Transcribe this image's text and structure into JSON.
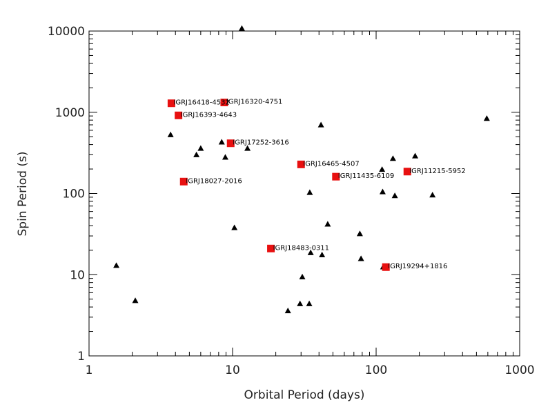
{
  "chart_data": {
    "type": "scatter",
    "xlabel": "Orbital Period (days)",
    "ylabel": "Spin Period (s)",
    "x_scale": "log",
    "y_scale": "log",
    "xlim": [
      1,
      1000
    ],
    "ylim": [
      1,
      10000
    ],
    "x_ticks": [
      "1",
      "10",
      "100",
      "1000"
    ],
    "y_ticks": [
      "1",
      "10",
      "100",
      "1000",
      "10000"
    ],
    "grid": false,
    "colors": {
      "highlight": "#e81010",
      "known": "#000000",
      "axis": "#000000"
    },
    "series": [
      {
        "marker": "triangle",
        "color": "#000000",
        "points": [
          {
            "x": 1.55,
            "y": 13
          },
          {
            "x": 2.1,
            "y": 4.8
          },
          {
            "x": 3.7,
            "y": 530
          },
          {
            "x": 5.6,
            "y": 300
          },
          {
            "x": 6.0,
            "y": 360
          },
          {
            "x": 8.4,
            "y": 430
          },
          {
            "x": 8.9,
            "y": 280
          },
          {
            "x": 10.3,
            "y": 38
          },
          {
            "x": 11.6,
            "y": 10800
          },
          {
            "x": 12.7,
            "y": 360
          },
          {
            "x": 24.3,
            "y": 3.6
          },
          {
            "x": 29.5,
            "y": 4.4
          },
          {
            "x": 30.6,
            "y": 9.4
          },
          {
            "x": 34.2,
            "y": 4.4
          },
          {
            "x": 34.5,
            "y": 103
          },
          {
            "x": 35.0,
            "y": 18.7
          },
          {
            "x": 41.3,
            "y": 700
          },
          {
            "x": 42.0,
            "y": 17.6
          },
          {
            "x": 46.0,
            "y": 42
          },
          {
            "x": 77.0,
            "y": 32
          },
          {
            "x": 78.5,
            "y": 15.8
          },
          {
            "x": 110.0,
            "y": 198
          },
          {
            "x": 111.0,
            "y": 105
          },
          {
            "x": 112.0,
            "y": 12.5
          },
          {
            "x": 131.0,
            "y": 270
          },
          {
            "x": 135.0,
            "y": 94
          },
          {
            "x": 187.0,
            "y": 290
          },
          {
            "x": 247.0,
            "y": 96
          },
          {
            "x": 590.0,
            "y": 840
          }
        ]
      },
      {
        "marker": "square",
        "color": "#e81010",
        "points": [
          {
            "x": 3.75,
            "y": 1290,
            "label": "IGRJ16418-4532"
          },
          {
            "x": 8.75,
            "y": 1320,
            "label": "IGRJ16320-4751"
          },
          {
            "x": 4.2,
            "y": 915,
            "label": "IGRJ16393-4643"
          },
          {
            "x": 9.7,
            "y": 415,
            "label": "IGRJ17252-3616"
          },
          {
            "x": 30.0,
            "y": 228,
            "label": "IGRJ16465-4507"
          },
          {
            "x": 165.0,
            "y": 186,
            "label": "IGRJ11215-5952"
          },
          {
            "x": 52.5,
            "y": 161,
            "label": "IGRJ11435-6109"
          },
          {
            "x": 4.57,
            "y": 140,
            "label": "IGRJ18027-2016"
          },
          {
            "x": 18.5,
            "y": 21,
            "label": "IGRJ18483-0311"
          },
          {
            "x": 117.0,
            "y": 12.4,
            "label": "IGRJ19294+1816"
          }
        ]
      }
    ]
  }
}
